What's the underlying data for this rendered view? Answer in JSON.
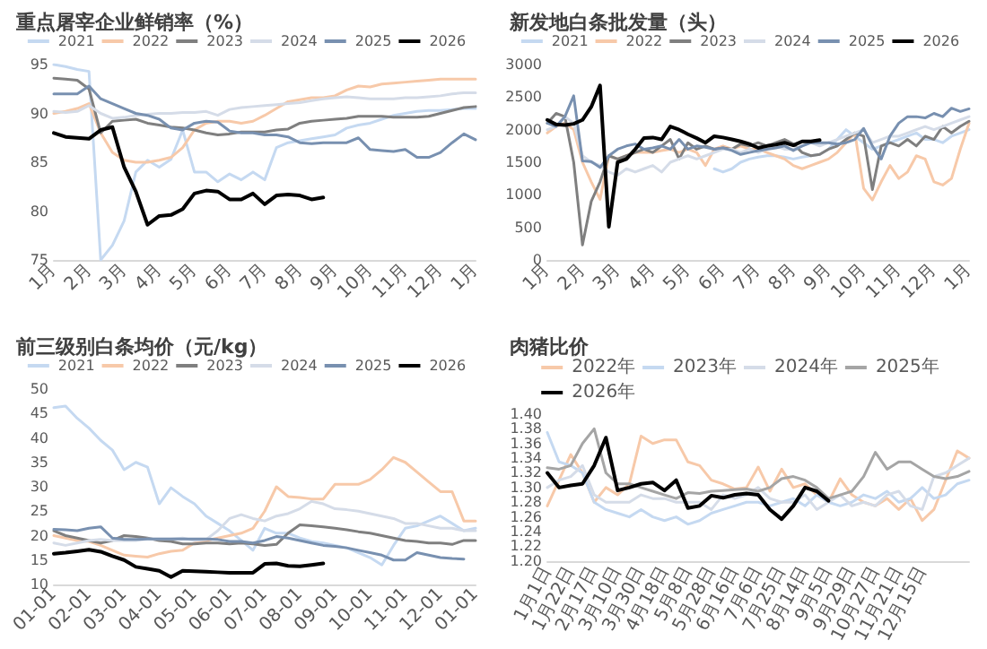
{
  "chart_data": [
    {
      "type": "line",
      "title": "重点屠宰企业鲜销率（%）",
      "categories": [
        "1月",
        null,
        null,
        "2月",
        null,
        null,
        "3月",
        null,
        null,
        "4月",
        null,
        null,
        "5月",
        null,
        null,
        "6月",
        null,
        null,
        "7月",
        null,
        null,
        "8月",
        null,
        null,
        "9月",
        null,
        null,
        "10月",
        null,
        null,
        "11月",
        null,
        null,
        "12月",
        null,
        null,
        "1月"
      ],
      "ylim": [
        75,
        95
      ],
      "yticks": [
        75,
        80,
        85,
        90,
        95
      ],
      "grid": false,
      "legend": "top",
      "marker": "none",
      "line_style": "solid",
      "series": [
        {
          "name": "2021",
          "color": "#c5d9f1",
          "values": [
            95,
            94.8,
            94.5,
            94.3,
            75,
            76.5,
            79,
            84,
            85.2,
            84.5,
            85.3,
            88.3,
            84,
            84,
            83,
            83.8,
            83.2,
            84,
            83.2,
            86.5,
            87,
            87.2,
            87.4,
            87.6,
            87.8,
            88.5,
            88.8,
            89,
            89.4,
            89.8,
            90,
            90.2,
            90.3,
            90.3,
            90.4,
            90.5,
            90.5
          ]
        },
        {
          "name": "2022",
          "color": "#f7c9a9",
          "values": [
            90,
            90.2,
            90.5,
            91,
            88,
            86,
            85.2,
            85,
            85,
            85.2,
            85.5,
            86.5,
            88.3,
            89,
            89.2,
            89.2,
            89,
            89.2,
            89.8,
            90.5,
            91.2,
            91.4,
            91.6,
            91.6,
            91.8,
            92.4,
            92.8,
            92.7,
            93,
            93.1,
            93.2,
            93.3,
            93.4,
            93.5,
            93.5,
            93.5,
            93.5
          ]
        },
        {
          "name": "2023",
          "color": "#7f7f7f",
          "values": [
            93.6,
            93.5,
            93.4,
            92.5,
            88,
            89.2,
            89.3,
            89.4,
            89,
            88.8,
            88.6,
            88.5,
            88.3,
            88,
            87.8,
            87.9,
            88.1,
            88.1,
            88.1,
            88.3,
            88.4,
            89,
            89.2,
            89.3,
            89.4,
            89.5,
            89.7,
            89.7,
            89.7,
            89.6,
            89.6,
            89.6,
            89.7,
            90,
            90.3,
            90.6,
            90.7
          ]
        },
        {
          "name": "2024",
          "color": "#d5dce8",
          "values": [
            90.2,
            90.1,
            90.2,
            90.8,
            90,
            89.5,
            89.6,
            89.8,
            89.9,
            90,
            90,
            90.1,
            90.1,
            90.2,
            89.8,
            90.4,
            90.6,
            90.7,
            90.8,
            90.9,
            91,
            91.1,
            91.3,
            91.5,
            91.6,
            91.7,
            91.6,
            91.5,
            91.5,
            91.5,
            91.6,
            91.6,
            91.7,
            91.8,
            92,
            92.1,
            92.1
          ]
        },
        {
          "name": "2025",
          "color": "#7890b0",
          "values": [
            92,
            92,
            92,
            92.8,
            91.5,
            91,
            90.5,
            90,
            89.8,
            89.4,
            88.5,
            88.3,
            89,
            89.2,
            89.1,
            88.2,
            88,
            88,
            87.8,
            87.8,
            87.6,
            87,
            86.9,
            87,
            87,
            87,
            87.5,
            86.3,
            86.2,
            86.1,
            86.3,
            85.5,
            85.5,
            86,
            87,
            87.9,
            87.3
          ]
        },
        {
          "name": "2026",
          "color": "#000000",
          "values": [
            88,
            87.6,
            87.5,
            87.4,
            88.3,
            88.6,
            84.5,
            82,
            78.6,
            79.5,
            79.6,
            80.2,
            81.8,
            82.1,
            82,
            81.2,
            81.2,
            81.8,
            80.7,
            81.6,
            81.7,
            81.6,
            81.2,
            81.4,
            null,
            null,
            null,
            null,
            null,
            null,
            null,
            null,
            null,
            null,
            null,
            null,
            null
          ]
        }
      ]
    },
    {
      "type": "line",
      "title": "新发地白条批发量（头）",
      "categories": [
        "1月",
        null,
        null,
        null,
        "2月",
        null,
        null,
        null,
        "3月",
        null,
        null,
        null,
        "4月",
        null,
        null,
        null,
        "5月",
        null,
        null,
        null,
        "6月",
        null,
        null,
        null,
        "7月",
        null,
        null,
        null,
        "8月",
        null,
        null,
        null,
        "9月",
        null,
        null,
        null,
        "10月",
        null,
        null,
        null,
        "11月",
        null,
        null,
        null,
        "12月",
        null,
        null,
        null,
        "1月"
      ],
      "ylim": [
        0,
        3000
      ],
      "yticks": [
        0,
        500,
        1000,
        1500,
        2000,
        2500,
        3000
      ],
      "grid": false,
      "legend": "top",
      "marker": "none",
      "line_style": "solid",
      "series": [
        {
          "name": "2021",
          "color": "#c5d9f1",
          "values": [
            null,
            null,
            null,
            null,
            null,
            null,
            null,
            null,
            null,
            null,
            null,
            null,
            null,
            null,
            null,
            null,
            null,
            null,
            null,
            1400,
            1350,
            1400,
            1500,
            1550,
            1580,
            1600,
            1600,
            1580,
            1550,
            1580,
            1600,
            1620,
            1700,
            1850,
            2000,
            1900,
            1800,
            1700,
            1750,
            1800,
            1850,
            1900,
            1950,
            1850,
            1850,
            1800,
            1900,
            1950,
            2000
          ]
        },
        {
          "name": "2022",
          "color": "#f7c9a9",
          "values": [
            1950,
            2050,
            2100,
            2000,
            1500,
            1200,
            930,
            1600,
            1550,
            1600,
            1650,
            1650,
            1650,
            1680,
            1700,
            1650,
            1700,
            1650,
            1450,
            1700,
            1750,
            1700,
            1750,
            1700,
            1700,
            1650,
            1600,
            1550,
            1450,
            1400,
            1450,
            1500,
            1550,
            1650,
            1800,
            1950,
            1100,
            920,
            1200,
            1450,
            1250,
            1350,
            1600,
            1550,
            1200,
            1150,
            1250,
            1700,
            2100
          ]
        },
        {
          "name": "2023",
          "color": "#7f7f7f",
          "values": [
            2100,
            2250,
            2200,
            1500,
            230,
            900,
            1200,
            1600,
            1550,
            1600,
            1650,
            1700,
            1650,
            1750,
            1850,
            1550,
            1800,
            1700,
            1750,
            1700,
            1720,
            1700,
            1780,
            1750,
            1800,
            1750,
            1800,
            1850,
            1780,
            1650,
            1600,
            1620,
            1700,
            1750,
            1850,
            1950,
            1900,
            1080,
            1750,
            1800,
            1750,
            1850,
            1750,
            1900,
            1850,
            2050,
            1950,
            2050,
            2130
          ]
        },
        {
          "name": "2024",
          "color": "#d5dce8",
          "values": [
            2000,
            2050,
            2200,
            2100,
            1600,
            1500,
            1450,
            1350,
            1300,
            1400,
            1350,
            1400,
            1450,
            1350,
            1500,
            1550,
            1600,
            1550,
            1600,
            1650,
            1700,
            1700,
            1650,
            1700,
            1650,
            1700,
            1750,
            1700,
            1700,
            1750,
            1800,
            1750,
            1800,
            1850,
            1900,
            1950,
            2000,
            1800,
            1850,
            1900,
            1900,
            1950,
            2000,
            2050,
            2000,
            2050,
            2100,
            2150,
            2200
          ]
        },
        {
          "name": "2025",
          "color": "#7890b0",
          "values": [
            2100,
            2050,
            2200,
            2520,
            1520,
            1510,
            1420,
            1600,
            1700,
            1750,
            1780,
            1700,
            1720,
            1750,
            1700,
            1850,
            1700,
            1750,
            1730,
            1700,
            1720,
            1680,
            1620,
            1650,
            1680,
            1700,
            1720,
            1750,
            1680,
            1750,
            1800,
            1800,
            1800,
            1780,
            1800,
            1850,
            2020,
            1750,
            1550,
            1900,
            2100,
            2200,
            2200,
            2180,
            2250,
            2200,
            2330,
            2280,
            2320
          ]
        },
        {
          "name": "2026",
          "color": "#000000",
          "values": [
            2150,
            2080,
            2070,
            2090,
            2150,
            2350,
            2680,
            510,
            1500,
            1550,
            1700,
            1870,
            1880,
            1850,
            2050,
            2000,
            1930,
            1870,
            1800,
            1900,
            1880,
            1850,
            1820,
            1780,
            1720,
            1750,
            1770,
            1800,
            1760,
            1820,
            1820,
            1840,
            null,
            null,
            null,
            null,
            null,
            null,
            null,
            null,
            null,
            null,
            null,
            null,
            null,
            null,
            null,
            null,
            null
          ]
        }
      ]
    },
    {
      "type": "line",
      "title": "前三级别白条均价（元/kg）",
      "categories": [
        "01-01",
        null,
        null,
        "02-01",
        null,
        null,
        "03-01",
        null,
        null,
        "04-01",
        null,
        null,
        "05-01",
        null,
        null,
        "06-01",
        null,
        null,
        "07-01",
        null,
        null,
        "08-01",
        null,
        null,
        "09-01",
        null,
        null,
        "10-01",
        null,
        null,
        "11-01",
        null,
        null,
        "12-01",
        null,
        null,
        "01-01"
      ],
      "ylim": [
        10,
        50
      ],
      "yticks": [
        10,
        15,
        20,
        25,
        30,
        35,
        40,
        45,
        50
      ],
      "grid": false,
      "legend": "top",
      "marker": "none",
      "line_style": "solid",
      "series": [
        {
          "name": "2021",
          "color": "#c5d9f1",
          "values": [
            46.2,
            46.5,
            44,
            42,
            39.5,
            37.5,
            33.5,
            35,
            34,
            26.5,
            29.8,
            28,
            26.5,
            24,
            22.5,
            21,
            19,
            17,
            21.5,
            20.5,
            20.5,
            19.5,
            18.8,
            18.5,
            18,
            17.5,
            16.5,
            15.5,
            14,
            18,
            21.5,
            22,
            23,
            24,
            22.5,
            21,
            21.5
          ]
        },
        {
          "name": "2022",
          "color": "#f7c9a9",
          "values": [
            20,
            19.5,
            19,
            18.8,
            18,
            17,
            16,
            15.8,
            15.6,
            16.3,
            16.8,
            17,
            18.5,
            19,
            19.5,
            20,
            20.5,
            21.5,
            25,
            30,
            28,
            27.8,
            27.5,
            27.5,
            30.5,
            30.5,
            30.5,
            31.5,
            33.5,
            36,
            35,
            33,
            31,
            29,
            29,
            23,
            23
          ]
        },
        {
          "name": "2023",
          "color": "#7f7f7f",
          "values": [
            21,
            20,
            19.5,
            19,
            18.5,
            19,
            20,
            19.8,
            19.5,
            19,
            18.8,
            18.3,
            18.3,
            18.5,
            18.5,
            18.3,
            18.5,
            18.3,
            18,
            18.2,
            20.5,
            22.2,
            22,
            21.8,
            21.5,
            21.2,
            20.8,
            20.5,
            20,
            19.5,
            19,
            18.8,
            18.5,
            18.5,
            18.2,
            19,
            19
          ]
        },
        {
          "name": "2024",
          "color": "#d5dce8",
          "values": [
            18.5,
            18,
            18.5,
            19,
            19.2,
            19,
            19,
            19,
            19.3,
            19.3,
            19.3,
            19.5,
            19,
            19.2,
            21,
            23.5,
            24.3,
            23.5,
            23,
            24,
            24.5,
            25.5,
            27,
            26.5,
            25.5,
            25.3,
            25,
            24.5,
            24,
            23.5,
            22.5,
            22.5,
            22,
            21.5,
            21.5,
            21,
            21
          ]
        },
        {
          "name": "2025",
          "color": "#7890b0",
          "values": [
            21.3,
            21.2,
            21,
            21.5,
            21.8,
            19.5,
            19.2,
            19.2,
            19.3,
            19.3,
            19.3,
            19.3,
            19.3,
            19.3,
            19.2,
            18.8,
            18.8,
            18.5,
            19,
            19.8,
            19.5,
            19,
            18.5,
            18,
            17.8,
            17.5,
            17,
            16.5,
            16,
            15,
            15,
            16.5,
            16,
            15.5,
            15.3,
            15.2,
            null
          ]
        },
        {
          "name": "2026",
          "color": "#000000",
          "values": [
            16.3,
            16.5,
            16.8,
            17.1,
            16.7,
            15.8,
            15,
            13.6,
            13.2,
            12.8,
            11.5,
            12.8,
            12.7,
            12.6,
            12.5,
            12.4,
            12.4,
            12.4,
            14.2,
            14.3,
            13.8,
            13.7,
            14,
            14.3,
            null,
            null,
            null,
            null,
            null,
            null,
            null,
            null,
            null,
            null,
            null,
            null,
            null
          ]
        }
      ]
    },
    {
      "type": "line",
      "title": "肉猪比价",
      "categories": [
        "1月1日",
        null,
        "1月22日",
        null,
        "2月17日",
        null,
        "3月10日",
        null,
        "3月30日",
        null,
        "4月18日",
        null,
        "5月8日",
        null,
        "5月28日",
        null,
        "6月16日",
        null,
        "7月6日",
        null,
        "7月25日",
        null,
        "8月14日",
        null,
        "9月5日",
        null,
        "9月29日",
        null,
        "10月27日",
        null,
        "11月21日",
        null,
        "12月15日",
        null,
        null,
        null,
        null
      ],
      "ylim": [
        1.2,
        1.4
      ],
      "yticks": [
        {
          "value": 1.2,
          "label": "1.20"
        },
        1.22,
        1.24,
        1.26,
        1.28,
        {
          "value": 1.3,
          "label": "1.30"
        },
        1.32,
        1.34,
        1.36,
        1.38,
        {
          "value": 1.4,
          "label": "1.40"
        }
      ],
      "grid": false,
      "legend": "top",
      "marker": "none",
      "line_style": "solid",
      "series": [
        {
          "name": "2022年",
          "color": "#f7c9a9",
          "values": [
            1.275,
            1.31,
            1.345,
            1.32,
            1.28,
            1.3,
            1.29,
            1.305,
            1.37,
            1.36,
            1.365,
            1.365,
            1.335,
            1.33,
            1.31,
            1.305,
            1.298,
            1.3,
            1.328,
            1.295,
            1.325,
            1.3,
            1.305,
            1.29,
            1.28,
            1.312,
            1.29,
            1.28,
            1.275,
            1.285,
            1.27,
            1.285,
            1.255,
            1.27,
            1.31,
            1.35,
            1.34
          ]
        },
        {
          "name": "2023年",
          "color": "#c5d9f1",
          "values": [
            1.375,
            1.335,
            1.33,
            1.32,
            1.28,
            1.27,
            1.265,
            1.26,
            1.27,
            1.26,
            1.255,
            1.26,
            1.25,
            1.255,
            1.265,
            1.27,
            1.275,
            1.28,
            1.28,
            1.275,
            1.28,
            1.285,
            1.275,
            1.29,
            1.28,
            1.275,
            1.28,
            1.29,
            1.285,
            1.295,
            1.28,
            1.285,
            1.3,
            1.285,
            1.29,
            1.305,
            1.31
          ]
        },
        {
          "name": "2024年",
          "color": "#d5dce8",
          "values": [
            1.3,
            1.31,
            1.315,
            1.33,
            1.29,
            1.28,
            1.28,
            1.28,
            1.29,
            1.285,
            1.285,
            1.28,
            1.28,
            1.28,
            1.27,
            1.29,
            1.285,
            1.29,
            1.3,
            1.285,
            1.28,
            1.28,
            1.29,
            1.27,
            1.28,
            1.29,
            1.275,
            1.28,
            1.275,
            1.29,
            1.295,
            1.275,
            1.27,
            1.315,
            1.32,
            1.33,
            1.34
          ]
        },
        {
          "name": "2025年",
          "color": "#a5a5a5",
          "values": [
            1.327,
            1.325,
            1.33,
            1.36,
            1.38,
            1.32,
            1.305,
            1.305,
            1.3,
            1.295,
            1.29,
            1.285,
            1.293,
            1.292,
            1.295,
            1.296,
            1.297,
            1.298,
            1.295,
            1.3,
            1.312,
            1.315,
            1.31,
            1.3,
            1.285,
            1.29,
            1.295,
            1.315,
            1.348,
            1.325,
            1.335,
            1.335,
            1.325,
            1.315,
            1.312,
            1.315,
            1.322
          ]
        },
        {
          "name": "2026年",
          "color": "#000000",
          "values": [
            1.32,
            1.3,
            1.303,
            1.305,
            1.33,
            1.368,
            1.296,
            1.3,
            1.305,
            1.307,
            1.296,
            1.31,
            1.272,
            1.275,
            1.289,
            1.286,
            1.29,
            1.292,
            1.29,
            1.27,
            1.257,
            1.275,
            1.3,
            1.295,
            1.282,
            null,
            null,
            null,
            null,
            null,
            null,
            null,
            null,
            null,
            null,
            null,
            null
          ]
        }
      ]
    }
  ]
}
